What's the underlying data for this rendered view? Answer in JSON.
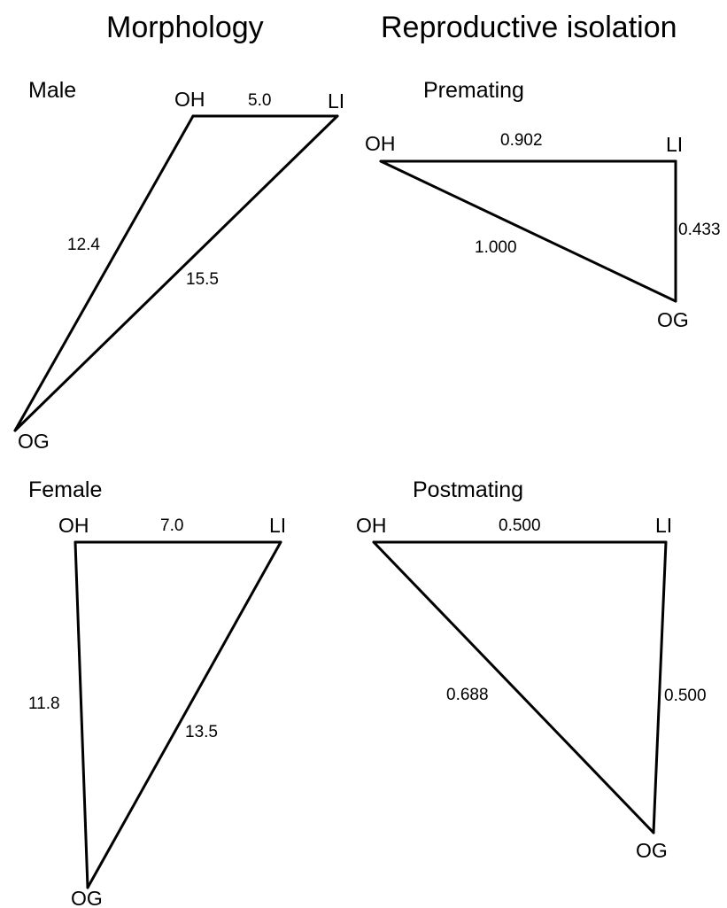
{
  "columns": {
    "left_title": "Morphology",
    "right_title": "Reproductive isolation"
  },
  "panels": {
    "male": {
      "title": "Male",
      "nodes": {
        "oh": "OH",
        "li": "LI",
        "og": "OG"
      },
      "edges": {
        "oh_li": "5.0",
        "oh_og": "12.4",
        "li_og": "15.5"
      }
    },
    "female": {
      "title": "Female",
      "nodes": {
        "oh": "OH",
        "li": "LI",
        "og": "OG"
      },
      "edges": {
        "oh_li": "7.0",
        "oh_og": "11.8",
        "li_og": "13.5"
      }
    },
    "premating": {
      "title": "Premating",
      "nodes": {
        "oh": "OH",
        "li": "LI",
        "og": "OG"
      },
      "edges": {
        "oh_li": "0.902",
        "oh_og": "1.000",
        "li_og": "0.433"
      }
    },
    "postmating": {
      "title": "Postmating",
      "nodes": {
        "oh": "OH",
        "li": "LI",
        "og": "OG"
      },
      "edges": {
        "oh_li": "0.500",
        "oh_og": "0.688",
        "li_og": "0.500"
      }
    }
  }
}
